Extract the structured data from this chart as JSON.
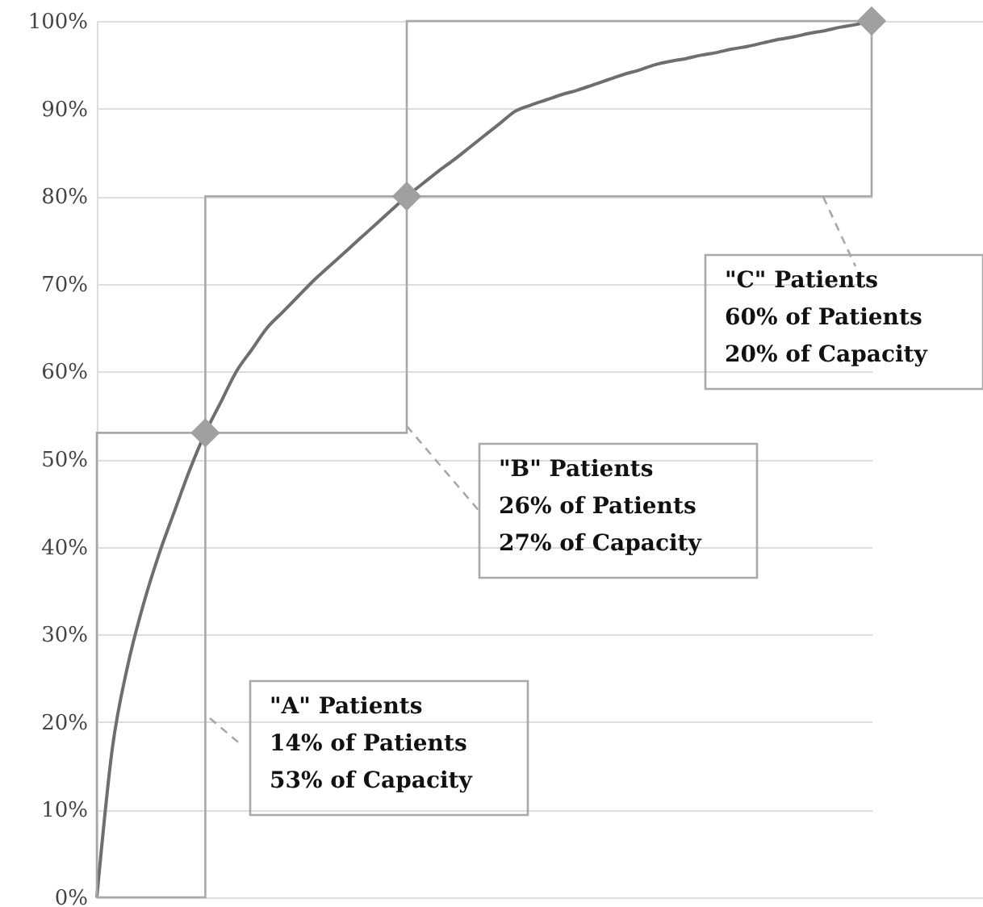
{
  "chart_data": {
    "type": "line",
    "categories": [
      null,
      null,
      null,
      null,
      null,
      null,
      null,
      null,
      null,
      null,
      null,
      null,
      null,
      null,
      null,
      null,
      null,
      null,
      null,
      null,
      null,
      null,
      null,
      null,
      null,
      null,
      null,
      null,
      null,
      null,
      null,
      null,
      null,
      null,
      null,
      null,
      null,
      null,
      null,
      null,
      null,
      null,
      null,
      null,
      null,
      null,
      null,
      null,
      null,
      null,
      null
    ],
    "ylim": [
      0,
      100
    ],
    "yticks": [
      {
        "value": 0,
        "label": "0%"
      },
      {
        "value": 10,
        "label": "10%"
      },
      {
        "value": 20,
        "label": "20%"
      },
      {
        "value": 30,
        "label": "30%"
      },
      {
        "value": 40,
        "label": "40%"
      },
      {
        "value": 50,
        "label": "50%"
      },
      {
        "value": 60,
        "label": "60%"
      },
      {
        "value": 70,
        "label": "70%"
      },
      {
        "value": 80,
        "label": "80%"
      },
      {
        "value": 90,
        "label": "90%"
      },
      {
        "value": 100,
        "label": "100%"
      }
    ],
    "tick_labels": "y",
    "grid": "y",
    "series": [
      {
        "color": "#6e6e6e",
        "line_style": "solid",
        "values": [
          0,
          17,
          26.5,
          33.4,
          39.1,
          44,
          48.8,
          53,
          56.5,
          60,
          62.5,
          65,
          66.8,
          68.6,
          70.4,
          72,
          73.6,
          75.2,
          76.8,
          78.4,
          80,
          81.4,
          82.8,
          84.1,
          85.5,
          86.9,
          88.3,
          89.7,
          90.4,
          91,
          91.6,
          92.1,
          92.7,
          93.3,
          93.9,
          94.4,
          95,
          95.4,
          95.7,
          96.1,
          96.4,
          96.8,
          97.1,
          97.5,
          97.9,
          98.2,
          98.6,
          98.9,
          99.3,
          99.6,
          100
        ]
      },
      {
        "type": "scatter",
        "color": "#a0a0a0",
        "marker": "diamond",
        "values": [
          null,
          null,
          null,
          null,
          null,
          null,
          null,
          53,
          null,
          null,
          null,
          null,
          null,
          null,
          null,
          null,
          null,
          null,
          null,
          null,
          80,
          null,
          null,
          null,
          null,
          null,
          null,
          null,
          null,
          null,
          null,
          null,
          null,
          null,
          null,
          null,
          null,
          null,
          null,
          null,
          null,
          null,
          null,
          null,
          null,
          null,
          null,
          null,
          null,
          null,
          100
        ]
      }
    ],
    "annotations": [
      "\"A\" Patients\n14% of Patients\n53% of Capacity",
      "\"B\" Patients\n26% of Patients\n27% of Capacity",
      "\"C\" Patients\n60% of Patients\n20% of Capacity"
    ]
  }
}
